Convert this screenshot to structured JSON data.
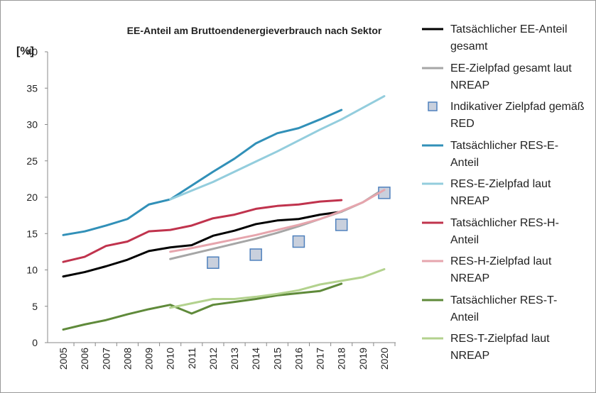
{
  "chart_data": {
    "type": "line",
    "title": "EE-Anteil am Bruttoendenergieverbrauch nach Sektor",
    "y_label": "[%]",
    "categories": [
      "2005",
      "2006",
      "2007",
      "2008",
      "2009",
      "2010",
      "2011",
      "2012",
      "2013",
      "2014",
      "2015",
      "2016",
      "2017",
      "2018",
      "2019",
      "2020"
    ],
    "ylim": [
      0,
      40
    ],
    "yticks": [
      0,
      5,
      10,
      15,
      20,
      25,
      30,
      35,
      40
    ],
    "grid": false,
    "series": [
      {
        "name": "Tatsächlicher EE-Anteil gesamt",
        "color": "#000000",
        "values": [
          9.1,
          9.7,
          10.5,
          11.4,
          12.6,
          13.1,
          13.4,
          14.7,
          15.4,
          16.3,
          16.8,
          17.0,
          17.6,
          18.0,
          null,
          null
        ]
      },
      {
        "name": "EE-Zielpfad gesamt laut NREAP",
        "color": "#a6a6a6",
        "values": [
          null,
          null,
          null,
          null,
          null,
          11.5,
          12.2,
          12.9,
          13.6,
          14.3,
          15.1,
          16.0,
          17.0,
          18.0,
          19.3,
          21.2
        ]
      },
      {
        "name": "Indikativer Zielpfad gemäß RED",
        "color": "#4f81bd",
        "marker": "square",
        "values": [
          null,
          null,
          null,
          null,
          null,
          null,
          null,
          11.0,
          null,
          12.1,
          null,
          13.9,
          null,
          16.2,
          null,
          20.6
        ]
      },
      {
        "name": "Tatsächlicher RES-E-Anteil",
        "color": "#3190b8",
        "values": [
          14.8,
          15.3,
          16.1,
          17.0,
          19.0,
          19.7,
          21.6,
          23.5,
          25.3,
          27.4,
          28.8,
          29.5,
          30.7,
          32.0,
          null,
          null
        ]
      },
      {
        "name": "RES-E-Zielpfad laut NREAP",
        "color": "#93cddd",
        "values": [
          null,
          null,
          null,
          null,
          null,
          19.7,
          20.9,
          22.1,
          23.5,
          24.9,
          26.3,
          27.8,
          29.3,
          30.7,
          32.3,
          33.9
        ]
      },
      {
        "name": "Tatsächlicher RES-H-Anteil",
        "color": "#c0334d",
        "values": [
          11.1,
          11.8,
          13.3,
          13.9,
          15.3,
          15.5,
          16.1,
          17.1,
          17.6,
          18.4,
          18.8,
          19.0,
          19.4,
          19.6,
          null,
          null
        ]
      },
      {
        "name": "RES-H-Zielpfad laut NREAP",
        "color": "#e6a5ad",
        "values": [
          null,
          null,
          null,
          null,
          null,
          12.5,
          13.0,
          13.6,
          14.2,
          14.8,
          15.5,
          16.2,
          17.0,
          18.1,
          19.3,
          21.0
        ]
      },
      {
        "name": "Tatsächlicher RES-T-Anteil",
        "color": "#5f8a3a",
        "values": [
          1.8,
          2.5,
          3.1,
          3.9,
          4.6,
          5.2,
          4.0,
          5.2,
          5.6,
          6.0,
          6.5,
          6.8,
          7.1,
          8.1,
          null,
          null
        ]
      },
      {
        "name": "RES-T-Zielpfad laut NREAP",
        "color": "#b3d28e",
        "values": [
          null,
          null,
          null,
          null,
          null,
          4.8,
          5.4,
          6.0,
          6.0,
          6.3,
          6.7,
          7.2,
          8.0,
          8.5,
          9.0,
          10.1
        ]
      }
    ]
  }
}
